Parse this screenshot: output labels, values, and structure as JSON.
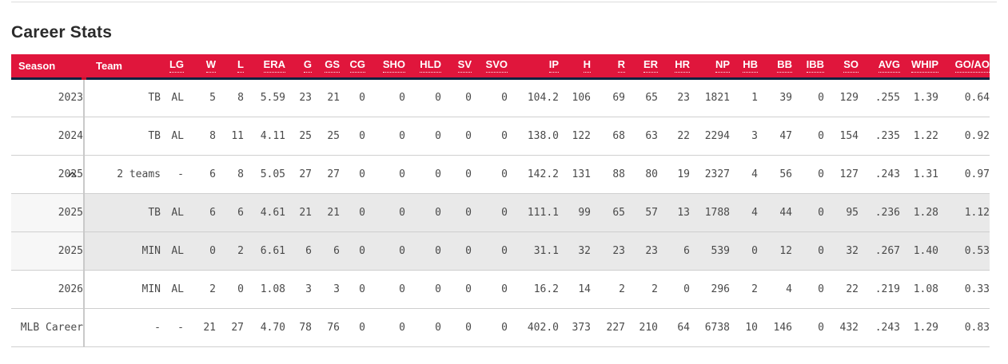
{
  "title": "Career Stats",
  "colors": {
    "header_bg": "#e0163c",
    "header_border_navy": "#0d2240",
    "row_highlight": "#e9e9e9",
    "season_column_bg": "#f7f7f7"
  },
  "table": {
    "columns": [
      {
        "key": "season",
        "label": "Season",
        "sortable": false
      },
      {
        "key": "team",
        "label": "Team",
        "sortable": false
      },
      {
        "key": "lg",
        "label": "LG",
        "sortable": true
      },
      {
        "key": "w",
        "label": "W",
        "sortable": true
      },
      {
        "key": "l",
        "label": "L",
        "sortable": true
      },
      {
        "key": "era",
        "label": "ERA",
        "sortable": true
      },
      {
        "key": "g",
        "label": "G",
        "sortable": true
      },
      {
        "key": "gs",
        "label": "GS",
        "sortable": true
      },
      {
        "key": "cg",
        "label": "CG",
        "sortable": true
      },
      {
        "key": "sho",
        "label": "SHO",
        "sortable": true
      },
      {
        "key": "hld",
        "label": "HLD",
        "sortable": true
      },
      {
        "key": "sv",
        "label": "SV",
        "sortable": true
      },
      {
        "key": "svo",
        "label": "SVO",
        "sortable": true
      },
      {
        "key": "ip",
        "label": "IP",
        "sortable": true
      },
      {
        "key": "h",
        "label": "H",
        "sortable": true
      },
      {
        "key": "r",
        "label": "R",
        "sortable": true
      },
      {
        "key": "er",
        "label": "ER",
        "sortable": true
      },
      {
        "key": "hr",
        "label": "HR",
        "sortable": true
      },
      {
        "key": "np",
        "label": "NP",
        "sortable": true
      },
      {
        "key": "hb",
        "label": "HB",
        "sortable": true
      },
      {
        "key": "bb",
        "label": "BB",
        "sortable": true
      },
      {
        "key": "ibb",
        "label": "IBB",
        "sortable": true
      },
      {
        "key": "so",
        "label": "SO",
        "sortable": true
      },
      {
        "key": "avg",
        "label": "AVG",
        "sortable": true
      },
      {
        "key": "whip",
        "label": "WHIP",
        "sortable": true
      },
      {
        "key": "goao",
        "label": "GO/AO",
        "sortable": true
      }
    ],
    "rows": [
      {
        "season": "2023",
        "expander": false,
        "sub": false,
        "cells": [
          "TB",
          "AL",
          "5",
          "8",
          "5.59",
          "23",
          "21",
          "0",
          "0",
          "0",
          "0",
          "0",
          "104.2",
          "106",
          "69",
          "65",
          "23",
          "1821",
          "1",
          "39",
          "0",
          "129",
          ".255",
          "1.39",
          "0.64"
        ]
      },
      {
        "season": "2024",
        "expander": false,
        "sub": false,
        "cells": [
          "TB",
          "AL",
          "8",
          "11",
          "4.11",
          "25",
          "25",
          "0",
          "0",
          "0",
          "0",
          "0",
          "138.0",
          "122",
          "68",
          "63",
          "22",
          "2294",
          "3",
          "47",
          "0",
          "154",
          ".235",
          "1.22",
          "0.92"
        ]
      },
      {
        "season": "2025",
        "expander": true,
        "sub": false,
        "cells": [
          "2 teams",
          "-",
          "6",
          "8",
          "5.05",
          "27",
          "27",
          "0",
          "0",
          "0",
          "0",
          "0",
          "142.2",
          "131",
          "88",
          "80",
          "19",
          "2327",
          "4",
          "56",
          "0",
          "127",
          ".243",
          "1.31",
          "0.97"
        ]
      },
      {
        "season": "2025",
        "expander": false,
        "sub": true,
        "cells": [
          "TB",
          "AL",
          "6",
          "6",
          "4.61",
          "21",
          "21",
          "0",
          "0",
          "0",
          "0",
          "0",
          "111.1",
          "99",
          "65",
          "57",
          "13",
          "1788",
          "4",
          "44",
          "0",
          "95",
          ".236",
          "1.28",
          "1.12"
        ]
      },
      {
        "season": "2025",
        "expander": false,
        "sub": true,
        "cells": [
          "MIN",
          "AL",
          "0",
          "2",
          "6.61",
          "6",
          "6",
          "0",
          "0",
          "0",
          "0",
          "0",
          "31.1",
          "32",
          "23",
          "23",
          "6",
          "539",
          "0",
          "12",
          "0",
          "32",
          ".267",
          "1.40",
          "0.53"
        ]
      },
      {
        "season": "2026",
        "expander": false,
        "sub": false,
        "cells": [
          "MIN",
          "AL",
          "2",
          "0",
          "1.08",
          "3",
          "3",
          "0",
          "0",
          "0",
          "0",
          "0",
          "16.2",
          "14",
          "2",
          "2",
          "0",
          "296",
          "2",
          "4",
          "0",
          "22",
          ".219",
          "1.08",
          "0.33"
        ]
      },
      {
        "season": "MLB Career",
        "expander": false,
        "sub": false,
        "cells": [
          "-",
          "-",
          "21",
          "27",
          "4.70",
          "78",
          "76",
          "0",
          "0",
          "0",
          "0",
          "0",
          "402.0",
          "373",
          "227",
          "210",
          "64",
          "6738",
          "10",
          "146",
          "0",
          "432",
          ".243",
          "1.29",
          "0.83"
        ]
      }
    ]
  },
  "icons": {
    "collapse": "chevron-up-icon"
  }
}
